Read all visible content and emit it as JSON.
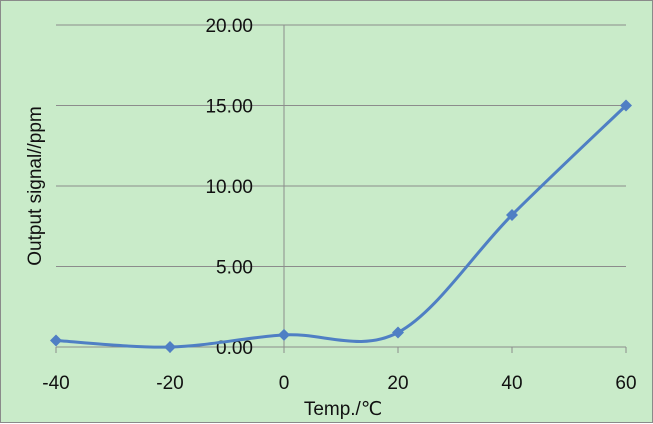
{
  "chart_data": {
    "type": "line",
    "title": "",
    "xlabel": "Temp./℃",
    "ylabel": "Output signal//ppm",
    "x": [
      -40,
      -20,
      0,
      20,
      40,
      60
    ],
    "x_tick_labels": [
      "-40",
      "-20",
      "0",
      "20",
      "40",
      "60"
    ],
    "y_tick_labels": [
      "0.00",
      "5.00",
      "10.00",
      "15.00",
      "20.00"
    ],
    "xlim": [
      -40,
      60
    ],
    "ylim": [
      0,
      20
    ],
    "grid": "horizontal",
    "smooth": true,
    "marker": "diamond",
    "series": [
      {
        "values": [
          0.4,
          0.0,
          0.75,
          0.9,
          8.2,
          15.0
        ]
      }
    ],
    "colors": {
      "background": "#c9ebc9",
      "line": "#4f7fc4",
      "grid": "#8c8c8c",
      "axis": "#8c8c8c"
    }
  }
}
